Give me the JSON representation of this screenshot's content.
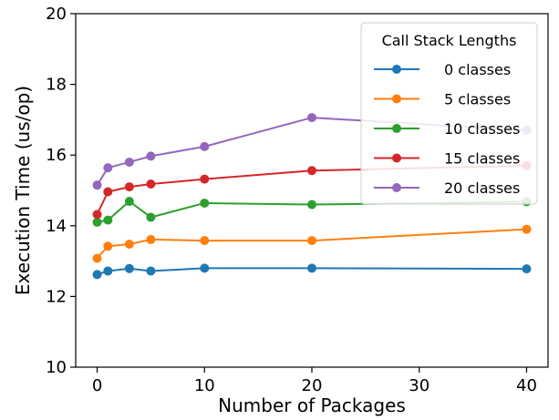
{
  "chart_data": {
    "type": "line",
    "title": "",
    "xlabel": "Number of Packages",
    "ylabel": "Execution Time (us/op)",
    "xlim": [
      -2,
      42
    ],
    "ylim": [
      10,
      20
    ],
    "xticks": [
      "0",
      "10",
      "20",
      "30",
      "40"
    ],
    "yticks": [
      "10",
      "12",
      "14",
      "16",
      "18",
      "20"
    ],
    "grid": false,
    "legend": {
      "title": "Call Stack Lengths",
      "placement": "top-right"
    },
    "x": [
      0,
      1,
      3,
      5,
      10,
      20,
      40
    ],
    "series": [
      {
        "name": "0 classes",
        "color": "#1f77b4",
        "values": [
          12.62,
          12.72,
          12.79,
          12.72,
          12.8,
          12.8,
          12.78
        ]
      },
      {
        "name": "5 classes",
        "color": "#ff7f0e",
        "values": [
          13.08,
          13.42,
          13.48,
          13.61,
          13.58,
          13.58,
          13.9
        ]
      },
      {
        "name": "10 classes",
        "color": "#2ca02c",
        "values": [
          14.1,
          14.16,
          14.69,
          14.24,
          14.64,
          14.6,
          14.68
        ]
      },
      {
        "name": "15 classes",
        "color": "#d62728",
        "values": [
          14.32,
          14.96,
          15.1,
          15.18,
          15.32,
          15.56,
          15.7
        ]
      },
      {
        "name": "20 classes",
        "color": "#9467bd",
        "values": [
          15.15,
          15.64,
          15.8,
          15.97,
          16.24,
          17.06,
          16.7
        ]
      }
    ]
  }
}
